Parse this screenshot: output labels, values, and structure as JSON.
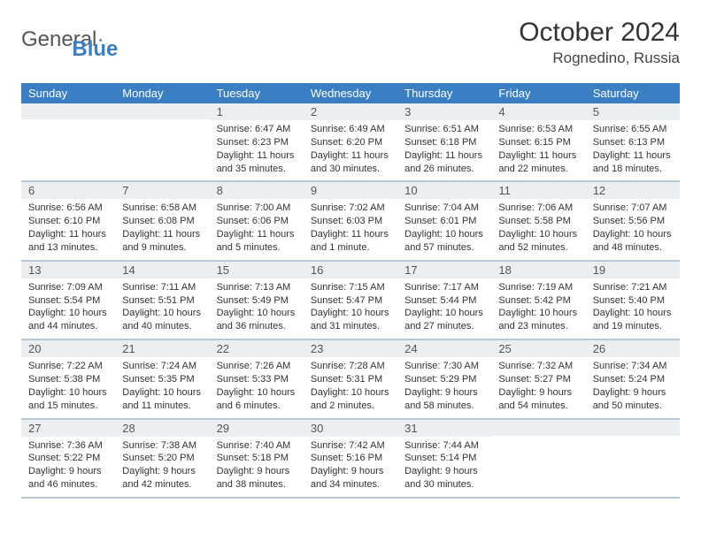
{
  "brand": {
    "part1": "General",
    "part2": "Blue"
  },
  "title": "October 2024",
  "location": "Rognedino, Russia",
  "colors": {
    "header_bg": "#3a7fc4",
    "header_text": "#ffffff",
    "daynum_bg": "#eceff2",
    "row_border": "#b9c8d6",
    "text": "#333333",
    "background": "#ffffff"
  },
  "day_names": [
    "Sunday",
    "Monday",
    "Tuesday",
    "Wednesday",
    "Thursday",
    "Friday",
    "Saturday"
  ],
  "weeks": [
    [
      {
        "n": "",
        "sr": "",
        "ss": "",
        "dl": ""
      },
      {
        "n": "",
        "sr": "",
        "ss": "",
        "dl": ""
      },
      {
        "n": "1",
        "sr": "Sunrise: 6:47 AM",
        "ss": "Sunset: 6:23 PM",
        "dl": "Daylight: 11 hours and 35 minutes."
      },
      {
        "n": "2",
        "sr": "Sunrise: 6:49 AM",
        "ss": "Sunset: 6:20 PM",
        "dl": "Daylight: 11 hours and 30 minutes."
      },
      {
        "n": "3",
        "sr": "Sunrise: 6:51 AM",
        "ss": "Sunset: 6:18 PM",
        "dl": "Daylight: 11 hours and 26 minutes."
      },
      {
        "n": "4",
        "sr": "Sunrise: 6:53 AM",
        "ss": "Sunset: 6:15 PM",
        "dl": "Daylight: 11 hours and 22 minutes."
      },
      {
        "n": "5",
        "sr": "Sunrise: 6:55 AM",
        "ss": "Sunset: 6:13 PM",
        "dl": "Daylight: 11 hours and 18 minutes."
      }
    ],
    [
      {
        "n": "6",
        "sr": "Sunrise: 6:56 AM",
        "ss": "Sunset: 6:10 PM",
        "dl": "Daylight: 11 hours and 13 minutes."
      },
      {
        "n": "7",
        "sr": "Sunrise: 6:58 AM",
        "ss": "Sunset: 6:08 PM",
        "dl": "Daylight: 11 hours and 9 minutes."
      },
      {
        "n": "8",
        "sr": "Sunrise: 7:00 AM",
        "ss": "Sunset: 6:06 PM",
        "dl": "Daylight: 11 hours and 5 minutes."
      },
      {
        "n": "9",
        "sr": "Sunrise: 7:02 AM",
        "ss": "Sunset: 6:03 PM",
        "dl": "Daylight: 11 hours and 1 minute."
      },
      {
        "n": "10",
        "sr": "Sunrise: 7:04 AM",
        "ss": "Sunset: 6:01 PM",
        "dl": "Daylight: 10 hours and 57 minutes."
      },
      {
        "n": "11",
        "sr": "Sunrise: 7:06 AM",
        "ss": "Sunset: 5:58 PM",
        "dl": "Daylight: 10 hours and 52 minutes."
      },
      {
        "n": "12",
        "sr": "Sunrise: 7:07 AM",
        "ss": "Sunset: 5:56 PM",
        "dl": "Daylight: 10 hours and 48 minutes."
      }
    ],
    [
      {
        "n": "13",
        "sr": "Sunrise: 7:09 AM",
        "ss": "Sunset: 5:54 PM",
        "dl": "Daylight: 10 hours and 44 minutes."
      },
      {
        "n": "14",
        "sr": "Sunrise: 7:11 AM",
        "ss": "Sunset: 5:51 PM",
        "dl": "Daylight: 10 hours and 40 minutes."
      },
      {
        "n": "15",
        "sr": "Sunrise: 7:13 AM",
        "ss": "Sunset: 5:49 PM",
        "dl": "Daylight: 10 hours and 36 minutes."
      },
      {
        "n": "16",
        "sr": "Sunrise: 7:15 AM",
        "ss": "Sunset: 5:47 PM",
        "dl": "Daylight: 10 hours and 31 minutes."
      },
      {
        "n": "17",
        "sr": "Sunrise: 7:17 AM",
        "ss": "Sunset: 5:44 PM",
        "dl": "Daylight: 10 hours and 27 minutes."
      },
      {
        "n": "18",
        "sr": "Sunrise: 7:19 AM",
        "ss": "Sunset: 5:42 PM",
        "dl": "Daylight: 10 hours and 23 minutes."
      },
      {
        "n": "19",
        "sr": "Sunrise: 7:21 AM",
        "ss": "Sunset: 5:40 PM",
        "dl": "Daylight: 10 hours and 19 minutes."
      }
    ],
    [
      {
        "n": "20",
        "sr": "Sunrise: 7:22 AM",
        "ss": "Sunset: 5:38 PM",
        "dl": "Daylight: 10 hours and 15 minutes."
      },
      {
        "n": "21",
        "sr": "Sunrise: 7:24 AM",
        "ss": "Sunset: 5:35 PM",
        "dl": "Daylight: 10 hours and 11 minutes."
      },
      {
        "n": "22",
        "sr": "Sunrise: 7:26 AM",
        "ss": "Sunset: 5:33 PM",
        "dl": "Daylight: 10 hours and 6 minutes."
      },
      {
        "n": "23",
        "sr": "Sunrise: 7:28 AM",
        "ss": "Sunset: 5:31 PM",
        "dl": "Daylight: 10 hours and 2 minutes."
      },
      {
        "n": "24",
        "sr": "Sunrise: 7:30 AM",
        "ss": "Sunset: 5:29 PM",
        "dl": "Daylight: 9 hours and 58 minutes."
      },
      {
        "n": "25",
        "sr": "Sunrise: 7:32 AM",
        "ss": "Sunset: 5:27 PM",
        "dl": "Daylight: 9 hours and 54 minutes."
      },
      {
        "n": "26",
        "sr": "Sunrise: 7:34 AM",
        "ss": "Sunset: 5:24 PM",
        "dl": "Daylight: 9 hours and 50 minutes."
      }
    ],
    [
      {
        "n": "27",
        "sr": "Sunrise: 7:36 AM",
        "ss": "Sunset: 5:22 PM",
        "dl": "Daylight: 9 hours and 46 minutes."
      },
      {
        "n": "28",
        "sr": "Sunrise: 7:38 AM",
        "ss": "Sunset: 5:20 PM",
        "dl": "Daylight: 9 hours and 42 minutes."
      },
      {
        "n": "29",
        "sr": "Sunrise: 7:40 AM",
        "ss": "Sunset: 5:18 PM",
        "dl": "Daylight: 9 hours and 38 minutes."
      },
      {
        "n": "30",
        "sr": "Sunrise: 7:42 AM",
        "ss": "Sunset: 5:16 PM",
        "dl": "Daylight: 9 hours and 34 minutes."
      },
      {
        "n": "31",
        "sr": "Sunrise: 7:44 AM",
        "ss": "Sunset: 5:14 PM",
        "dl": "Daylight: 9 hours and 30 minutes."
      },
      {
        "n": "",
        "sr": "",
        "ss": "",
        "dl": ""
      },
      {
        "n": "",
        "sr": "",
        "ss": "",
        "dl": ""
      }
    ]
  ]
}
